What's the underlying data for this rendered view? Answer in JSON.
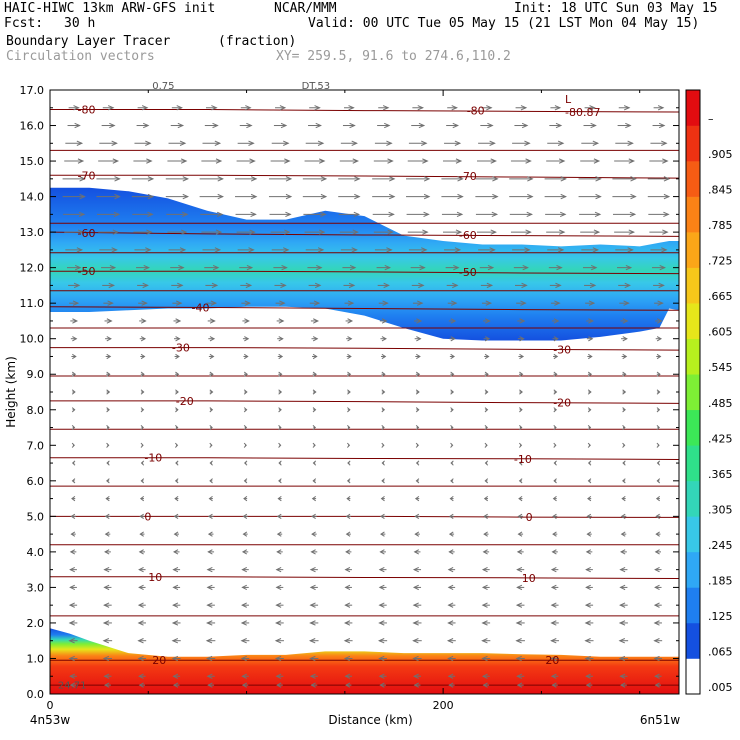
{
  "header": {
    "model": "HAIC-HIWC 13km ARW-GFS init",
    "org": "NCAR/MMM",
    "init": "Init: 18 UTC Sun 03 May 15",
    "fcst_label": "Fcst:",
    "fcst_value": "30 h",
    "valid": "Valid: 00 UTC Tue 05 May 15 (21 LST Mon 04 May 15)",
    "field1": "Boundary Layer Tracer",
    "field1_units": "(fraction)",
    "field2": "Circulation vectors",
    "xy": "XY= 259.5, 91.6 to 274.6,110.2"
  },
  "colors": {
    "contour": "#7a0000",
    "vector": "#707070",
    "frame": "#000000"
  },
  "chart_data": {
    "type": "heatmap",
    "xlabel": "Distance (km)",
    "ylabel": "Height (km)",
    "xlim": [
      0,
      320
    ],
    "ylim": [
      0,
      17
    ],
    "x_ticks": [
      {
        "v": 0,
        "label": "0"
      },
      {
        "v": 200,
        "label": "200"
      }
    ],
    "x_end_labels": {
      "left": "4n53w",
      "right": "6n51w"
    },
    "y_ticks": [
      {
        "v": 0,
        "label": "0.0"
      },
      {
        "v": 1,
        "label": "1.0"
      },
      {
        "v": 2,
        "label": "2.0"
      },
      {
        "v": 3,
        "label": "3.0"
      },
      {
        "v": 4,
        "label": "4.0"
      },
      {
        "v": 5,
        "label": "5.0"
      },
      {
        "v": 6,
        "label": "6.0"
      },
      {
        "v": 7,
        "label": "7.0"
      },
      {
        "v": 8,
        "label": "8.0"
      },
      {
        "v": 9,
        "label": "9.0"
      },
      {
        "v": 10,
        "label": "10.0"
      },
      {
        "v": 11,
        "label": "11.0"
      },
      {
        "v": 12,
        "label": "12.0"
      },
      {
        "v": 13,
        "label": "13.0"
      },
      {
        "v": 14,
        "label": "14.0"
      },
      {
        "v": 15,
        "label": "15.0"
      },
      {
        "v": 16,
        "label": "16.0"
      },
      {
        "v": 17,
        "label": "17.0"
      }
    ],
    "colorbar": {
      "labels": [
        ".005",
        ".065",
        ".125",
        ".185",
        ".245",
        ".305",
        ".365",
        ".425",
        ".485",
        ".545",
        ".605",
        ".665",
        ".725",
        ".785",
        ".845",
        ".905",
        "–"
      ],
      "colors": [
        "#ffffff",
        "#1450e0",
        "#1f7ff0",
        "#2fa8f5",
        "#38c8e8",
        "#33d6b8",
        "#2fe08a",
        "#3ce857",
        "#7eef35",
        "#b7f01e",
        "#e6e61a",
        "#f6c71a",
        "#fba618",
        "#fb8216",
        "#f65c14",
        "#ee3212",
        "#e20c10"
      ]
    },
    "contours": [
      {
        "label": "-80",
        "y": [
          16.45,
          16.45,
          16.42,
          16.4,
          16.38
        ],
        "label_at": [
          {
            "x": 14,
            "y": 16.45
          },
          {
            "x": 212,
            "y": 16.42
          }
        ]
      },
      {
        "label": "-70",
        "y": [
          14.6,
          14.6,
          14.58,
          14.55,
          14.52
        ],
        "label_at": [
          {
            "x": 14,
            "y": 14.6
          },
          {
            "x": 208,
            "y": 14.58
          }
        ]
      },
      {
        "label": "-60",
        "y": [
          13.0,
          12.95,
          12.92,
          12.9,
          12.88
        ],
        "label_at": [
          {
            "x": 14,
            "y": 12.98
          },
          {
            "x": 208,
            "y": 12.92
          }
        ]
      },
      {
        "label": "-50",
        "y": [
          11.9,
          11.9,
          11.88,
          11.85,
          11.83
        ],
        "label_at": [
          {
            "x": 14,
            "y": 11.9
          },
          {
            "x": 208,
            "y": 11.88
          }
        ]
      },
      {
        "label": "-40",
        "y": [
          10.9,
          10.88,
          10.85,
          10.82,
          10.8
        ],
        "label_at": [
          {
            "x": 72,
            "y": 10.88
          }
        ]
      },
      {
        "label": "-30",
        "y": [
          9.75,
          9.75,
          9.73,
          9.7,
          9.68
        ],
        "label_at": [
          {
            "x": 62,
            "y": 9.75
          },
          {
            "x": 256,
            "y": 9.7
          }
        ]
      },
      {
        "label": "-20",
        "y": [
          8.25,
          8.25,
          8.23,
          8.2,
          8.18
        ],
        "label_at": [
          {
            "x": 64,
            "y": 8.25
          },
          {
            "x": 256,
            "y": 8.2
          }
        ]
      },
      {
        "label": "-10",
        "y": [
          6.65,
          6.65,
          6.63,
          6.62,
          6.6
        ],
        "label_at": [
          {
            "x": 48,
            "y": 6.65
          },
          {
            "x": 236,
            "y": 6.62
          }
        ]
      },
      {
        "label": "0",
        "y": [
          5.0,
          5.0,
          5.0,
          4.98,
          4.97
        ],
        "label_at": [
          {
            "x": 48,
            "y": 5.0
          },
          {
            "x": 242,
            "y": 4.98
          }
        ]
      },
      {
        "label": "10",
        "y": [
          3.3,
          3.3,
          3.28,
          3.27,
          3.25
        ],
        "label_at": [
          {
            "x": 50,
            "y": 3.3
          },
          {
            "x": 240,
            "y": 3.27
          }
        ]
      },
      {
        "label": "20",
        "y": [
          0.95,
          0.95,
          0.95,
          0.95,
          0.95
        ],
        "label_at": [
          {
            "x": 52,
            "y": 0.95
          },
          {
            "x": 252,
            "y": 0.95
          }
        ]
      }
    ],
    "extra_lines_y": [
      15.3,
      13.25,
      12.42,
      11.35,
      10.3,
      8.95,
      7.45,
      5.85,
      4.2,
      2.2,
      0.25
    ],
    "contour_x": [
      0,
      80,
      160,
      240,
      320
    ],
    "min_label": {
      "text": "L",
      "x": 262,
      "y": 16.75
    },
    "min_value": {
      "text": "-80.87",
      "x": 262,
      "y": 16.38
    },
    "cut_labels": [
      {
        "text": "0.75",
        "x": 52,
        "y": 17.0
      },
      {
        "text": "DT.53",
        "x": 128,
        "y": 17.0
      },
      {
        "text": "24.71",
        "x": 4,
        "y": 0.1
      }
    ],
    "upper_layer": {
      "x": [
        0,
        20,
        40,
        60,
        80,
        100,
        120,
        140,
        160,
        180,
        200,
        220,
        240,
        260,
        280,
        300,
        310,
        315,
        320
      ],
      "top": [
        14.25,
        14.25,
        14.15,
        13.95,
        13.6,
        13.35,
        13.35,
        13.6,
        13.45,
        12.9,
        12.75,
        12.65,
        12.65,
        12.6,
        12.65,
        12.6,
        12.7,
        12.75,
        12.75
      ],
      "bot": [
        10.75,
        10.75,
        10.8,
        10.85,
        10.85,
        10.9,
        10.9,
        10.85,
        10.65,
        10.3,
        10.0,
        9.95,
        9.95,
        9.95,
        10.05,
        10.2,
        10.3,
        10.85,
        10.8
      ]
    },
    "boundary_layer": {
      "x": [
        0,
        10,
        20,
        40,
        60,
        80,
        100,
        120,
        140,
        160,
        180,
        200,
        220,
        240,
        260,
        280,
        300,
        320
      ],
      "top": [
        1.85,
        1.7,
        1.5,
        1.15,
        1.05,
        1.05,
        1.1,
        1.1,
        1.2,
        1.2,
        1.15,
        1.15,
        1.15,
        1.12,
        1.1,
        1.05,
        1.05,
        1.05
      ]
    },
    "vectors": [
      {
        "y": 16.5,
        "u": 0.45
      },
      {
        "y": 16.0,
        "u": 0.55
      },
      {
        "y": 15.5,
        "u": 0.75
      },
      {
        "y": 15.0,
        "u": 0.85
      },
      {
        "y": 14.5,
        "u": 1.0
      },
      {
        "y": 14.0,
        "u": 1.0
      },
      {
        "y": 13.5,
        "u": 0.95
      },
      {
        "y": 13.0,
        "u": 0.85
      },
      {
        "y": 12.5,
        "u": 0.75
      },
      {
        "y": 12.0,
        "u": 0.6
      },
      {
        "y": 11.5,
        "u": 0.5
      },
      {
        "y": 11.0,
        "u": 0.4
      },
      {
        "y": 10.5,
        "u": 0.3
      },
      {
        "y": 10.0,
        "u": 0.25
      },
      {
        "y": 9.5,
        "u": 0.2
      },
      {
        "y": 9.0,
        "u": 0.15
      },
      {
        "y": 8.5,
        "u": 0.12
      },
      {
        "y": 8.0,
        "u": 0.1
      },
      {
        "y": 7.5,
        "u": 0.08
      },
      {
        "y": 7.0,
        "u": 0.06
      },
      {
        "y": 6.5,
        "u": -0.08
      },
      {
        "y": 6.0,
        "u": -0.1
      },
      {
        "y": 5.5,
        "u": -0.15
      },
      {
        "y": 5.0,
        "u": -0.2
      },
      {
        "y": 4.5,
        "u": -0.2
      },
      {
        "y": 4.0,
        "u": -0.25
      },
      {
        "y": 3.5,
        "u": -0.3
      },
      {
        "y": 3.0,
        "u": -0.3
      },
      {
        "y": 2.5,
        "u": -0.32
      },
      {
        "y": 2.0,
        "u": -0.34
      },
      {
        "y": 1.5,
        "u": -0.36
      },
      {
        "y": 1.0,
        "u": -0.35
      },
      {
        "y": 0.5,
        "u": -0.3
      },
      {
        "y": 0.25,
        "u": -0.25
      }
    ]
  }
}
